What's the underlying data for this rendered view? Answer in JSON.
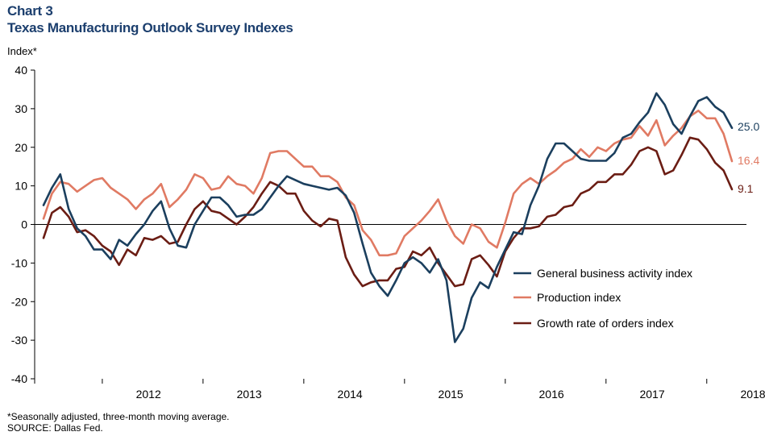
{
  "header": {
    "chart_number": "Chart 3",
    "title": "Texas Manufacturing Outlook Survey Indexes"
  },
  "footer": {
    "note": "*Seasonally adjusted, three-month moving average.",
    "source": "SOURCE: Dallas Fed."
  },
  "chart_data": {
    "type": "line",
    "title": "Texas Manufacturing Outlook Survey Indexes",
    "ylabel": "Index*",
    "xlabel": "",
    "ylim": [
      -40,
      40
    ],
    "yticks": [
      40,
      30,
      20,
      10,
      0,
      -10,
      -20,
      -30,
      -40
    ],
    "year_labels": [
      "2012",
      "2013",
      "2014",
      "2015",
      "2016",
      "2017",
      "2018"
    ],
    "x_start": "2011-06",
    "x_end": "2018-05",
    "legend_position": "right-middle",
    "grid": false,
    "series": [
      {
        "name": "General business activity index",
        "color": "#1b3f5e",
        "end_label": "25.0",
        "values": [
          5,
          9.5,
          13,
          4,
          -1,
          -3,
          -6.5,
          -6.5,
          -9,
          -4,
          -5.5,
          -2.5,
          0,
          3.5,
          6,
          -1,
          -5.5,
          -6,
          0,
          3.5,
          7,
          7,
          5,
          2,
          2.5,
          2.5,
          4,
          7,
          10,
          12.5,
          11.5,
          10.5,
          10,
          9.5,
          9,
          9.5,
          7.5,
          3,
          -5,
          -12.5,
          -16,
          -18.5,
          -14.5,
          -10,
          -8.5,
          -10,
          -12.5,
          -9,
          -14.5,
          -30.5,
          -27,
          -19,
          -15,
          -16.5,
          -11,
          -6.5,
          -2,
          -2.5,
          5,
          10,
          17,
          21,
          21,
          19,
          17,
          16.5,
          16.5,
          16.5,
          18.5,
          22.5,
          23.5,
          26.5,
          29,
          34,
          31,
          26,
          23.5,
          28,
          32,
          33,
          30.5,
          29,
          25
        ]
      },
      {
        "name": "Production index",
        "color": "#e07a63",
        "end_label": "16.4",
        "values": [
          1.5,
          8,
          11,
          10.5,
          8.5,
          10,
          11.5,
          12,
          9.5,
          8,
          6.5,
          4,
          6.5,
          8,
          10.5,
          4.5,
          6.5,
          9,
          13,
          12,
          9,
          9.5,
          12.5,
          10.5,
          10,
          8,
          12,
          18.5,
          19,
          19,
          17,
          15,
          15,
          12.5,
          12.5,
          11,
          7,
          5,
          -1.5,
          -4,
          -8,
          -8,
          -7.5,
          -3,
          -1,
          1,
          3.5,
          6.5,
          1,
          -3,
          -5,
          0,
          -1,
          -4.5,
          -6,
          0.5,
          8,
          10.5,
          12,
          10.5,
          12.5,
          14,
          16,
          17,
          19.5,
          17.5,
          20,
          19,
          21,
          22,
          22.5,
          25.5,
          23,
          27,
          20.5,
          23,
          25,
          28,
          29.5,
          27.5,
          27.5,
          23.5,
          16.4
        ]
      },
      {
        "name": "Growth rate of orders index",
        "color": "#6b1d14",
        "end_label": "9.1",
        "values": [
          -3.5,
          3,
          4.5,
          2,
          -2,
          -1.5,
          -3,
          -5.5,
          -7,
          -10.5,
          -6.5,
          -8,
          -3.5,
          -4,
          -3,
          -5,
          -4.5,
          0,
          4,
          6,
          3.5,
          3,
          1.5,
          0,
          2,
          4.5,
          8,
          11,
          10,
          8,
          8,
          3.5,
          1,
          -0.5,
          1.5,
          1,
          -8.5,
          -13,
          -16,
          -15,
          -14.5,
          -14.5,
          -11.5,
          -11,
          -7,
          -8,
          -6,
          -10,
          -13,
          -16,
          -15.5,
          -9,
          -8,
          -10.5,
          -13.5,
          -7,
          -3.5,
          -1,
          -1,
          -0.5,
          2,
          2.5,
          4.5,
          5,
          8,
          9,
          11,
          11,
          13,
          13,
          15.5,
          19,
          20,
          19,
          13,
          14,
          18,
          22.5,
          22,
          19.5,
          16,
          14,
          9.1
        ]
      }
    ]
  }
}
